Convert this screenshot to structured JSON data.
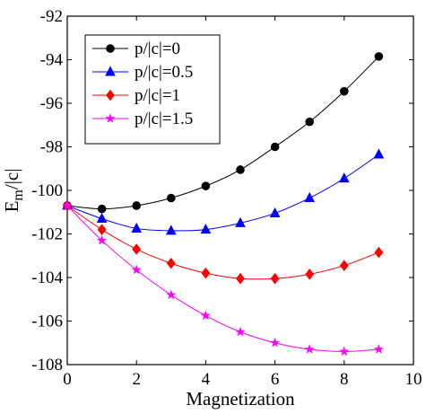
{
  "chart_data": {
    "type": "line",
    "title": "",
    "xlabel": "Magnetization",
    "ylabel_main": "E",
    "ylabel_sub": "m",
    "ylabel_rest": "/|c|",
    "xlim": [
      0,
      10
    ],
    "ylim": [
      -108,
      -92
    ],
    "xticks": [
      0,
      2,
      4,
      6,
      8,
      10
    ],
    "yticks": [
      -108,
      -106,
      -104,
      -102,
      -100,
      -98,
      -96,
      -94,
      -92
    ],
    "grid": false,
    "legend_position": "top-left",
    "x": [
      0,
      1,
      2,
      3,
      4,
      5,
      6,
      7,
      8,
      9
    ],
    "series": [
      {
        "name": "p/|c|=0",
        "color": "#000000",
        "marker": "circle",
        "values": [
          -100.7,
          -100.85,
          -100.7,
          -100.35,
          -99.8,
          -99.05,
          -98.0,
          -96.85,
          -95.45,
          -93.85
        ]
      },
      {
        "name": "p/|c|=0.5",
        "color": "#0000ff",
        "marker": "triangle",
        "values": [
          -100.7,
          -101.3,
          -101.75,
          -101.85,
          -101.8,
          -101.5,
          -101.05,
          -100.35,
          -99.45,
          -98.35
        ]
      },
      {
        "name": "p/|c|=1",
        "color": "#ff0000",
        "marker": "diamond",
        "values": [
          -100.7,
          -101.8,
          -102.7,
          -103.35,
          -103.8,
          -104.05,
          -104.05,
          -103.85,
          -103.45,
          -102.85
        ]
      },
      {
        "name": "p/|c|=1.5",
        "color": "#ff00ff",
        "marker": "star",
        "values": [
          -100.7,
          -102.3,
          -103.65,
          -104.8,
          -105.75,
          -106.5,
          -107.0,
          -107.3,
          -107.4,
          -107.3
        ]
      }
    ]
  }
}
